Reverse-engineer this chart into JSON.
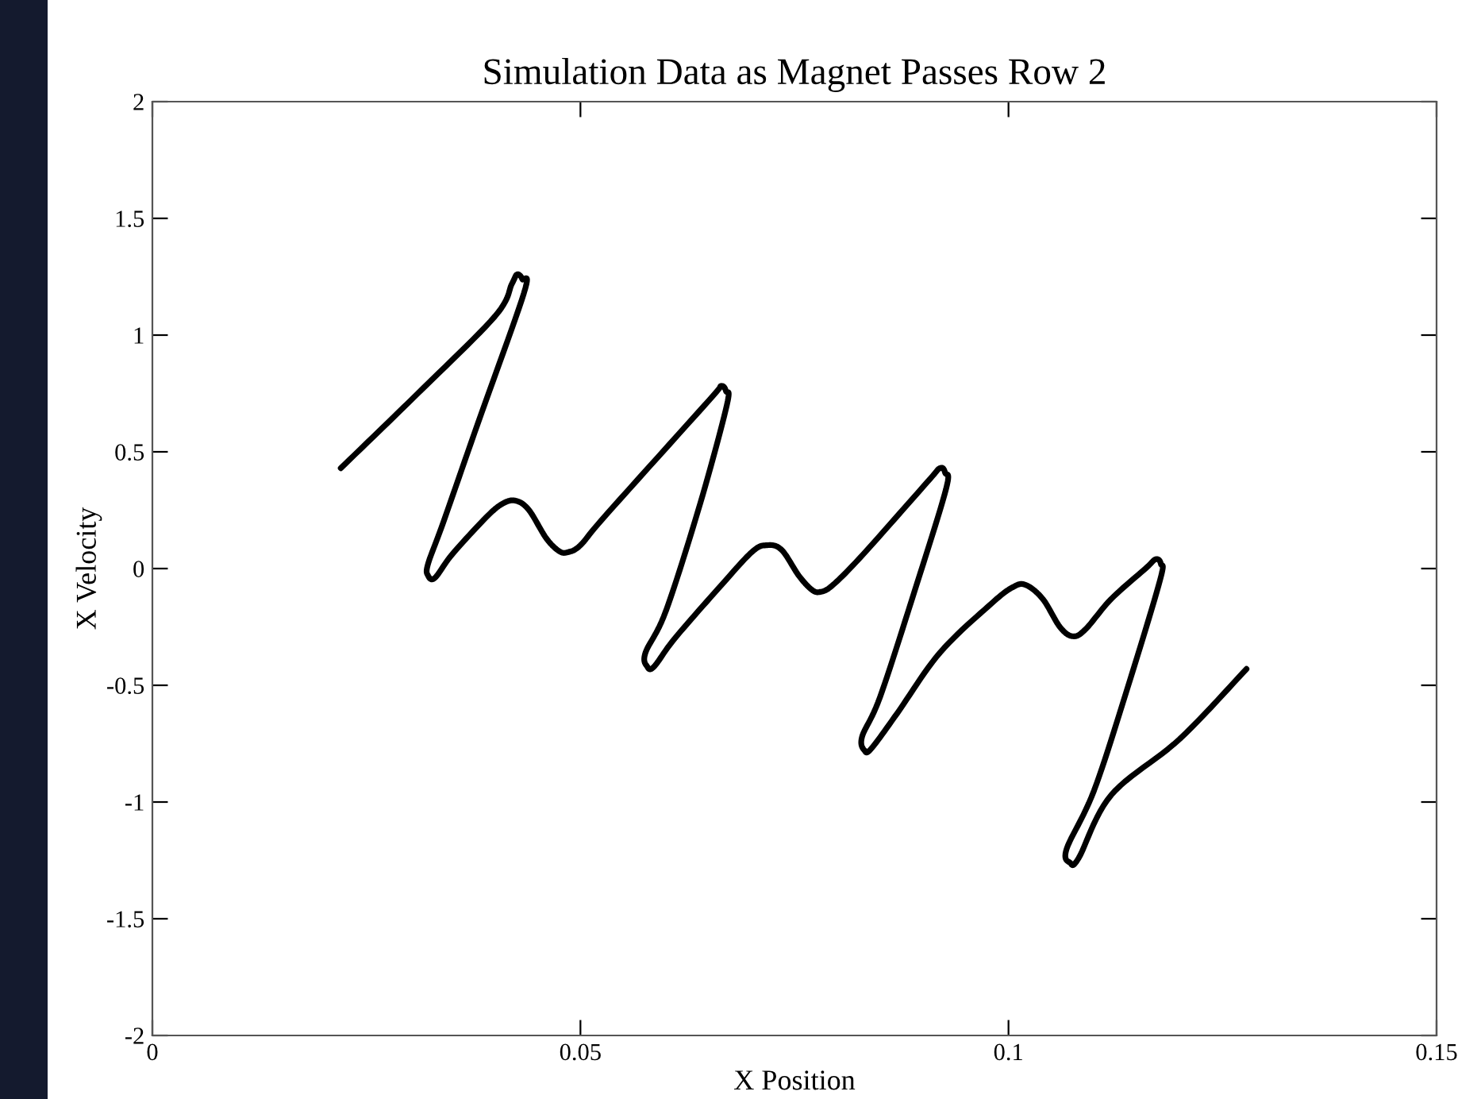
{
  "chart_data": {
    "type": "line",
    "title": "Simulation Data as Magnet Passes Row 2",
    "xlabel": "X Position",
    "ylabel": "X Velocity",
    "xlim": [
      0,
      0.15
    ],
    "xticks": [
      0,
      0.05,
      0.1,
      0.15
    ],
    "ylim": [
      -2,
      2
    ],
    "yticks": [
      -2,
      -1.5,
      -1,
      -0.5,
      0,
      0.5,
      1,
      1.5,
      2
    ],
    "grid": false,
    "legend": false,
    "marker": "none",
    "line_style": "solid",
    "series": [
      {
        "color": "#000000",
        "x": [
          0.022,
          0.031,
          0.04,
          0.042,
          0.0426,
          0.0432,
          0.0434,
          0.038,
          0.034,
          0.0322,
          0.0322,
          0.033,
          0.035,
          0.039,
          0.041,
          0.0425,
          0.044,
          0.046,
          0.0475,
          0.0485,
          0.05,
          0.053,
          0.065,
          0.0664,
          0.067,
          0.0671,
          0.064,
          0.06,
          0.0576,
          0.0578,
          0.0586,
          0.061,
          0.066,
          0.07,
          0.0718,
          0.0735,
          0.0755,
          0.077,
          0.078,
          0.0795,
          0.083,
          0.0905,
          0.092,
          0.0926,
          0.0927,
          0.089,
          0.085,
          0.0829,
          0.0832,
          0.084,
          0.087,
          0.092,
          0.098,
          0.1005,
          0.102,
          0.104,
          0.106,
          0.1075,
          0.109,
          0.112,
          0.116,
          0.1172,
          0.1178,
          0.1177,
          0.114,
          0.11,
          0.1068,
          0.1072,
          0.1082,
          0.112,
          0.12,
          0.1278
        ],
        "values": [
          0.43,
          0.75,
          1.08,
          1.22,
          1.26,
          1.24,
          1.18,
          0.62,
          0.2,
          0.02,
          -0.03,
          -0.04,
          0.06,
          0.22,
          0.28,
          0.29,
          0.25,
          0.13,
          0.075,
          0.07,
          0.1,
          0.23,
          0.72,
          0.78,
          0.76,
          0.7,
          0.28,
          -0.18,
          -0.36,
          -0.42,
          -0.42,
          -0.3,
          -0.09,
          0.07,
          0.1,
          0.08,
          -0.03,
          -0.09,
          -0.1,
          -0.07,
          0.06,
          0.37,
          0.43,
          0.41,
          0.34,
          -0.1,
          -0.55,
          -0.72,
          -0.78,
          -0.77,
          -0.62,
          -0.36,
          -0.15,
          -0.08,
          -0.07,
          -0.13,
          -0.25,
          -0.29,
          -0.26,
          -0.13,
          0.0,
          0.04,
          0.02,
          -0.05,
          -0.5,
          -0.95,
          -1.2,
          -1.26,
          -1.24,
          -0.97,
          -0.73,
          -0.43
        ]
      }
    ]
  }
}
